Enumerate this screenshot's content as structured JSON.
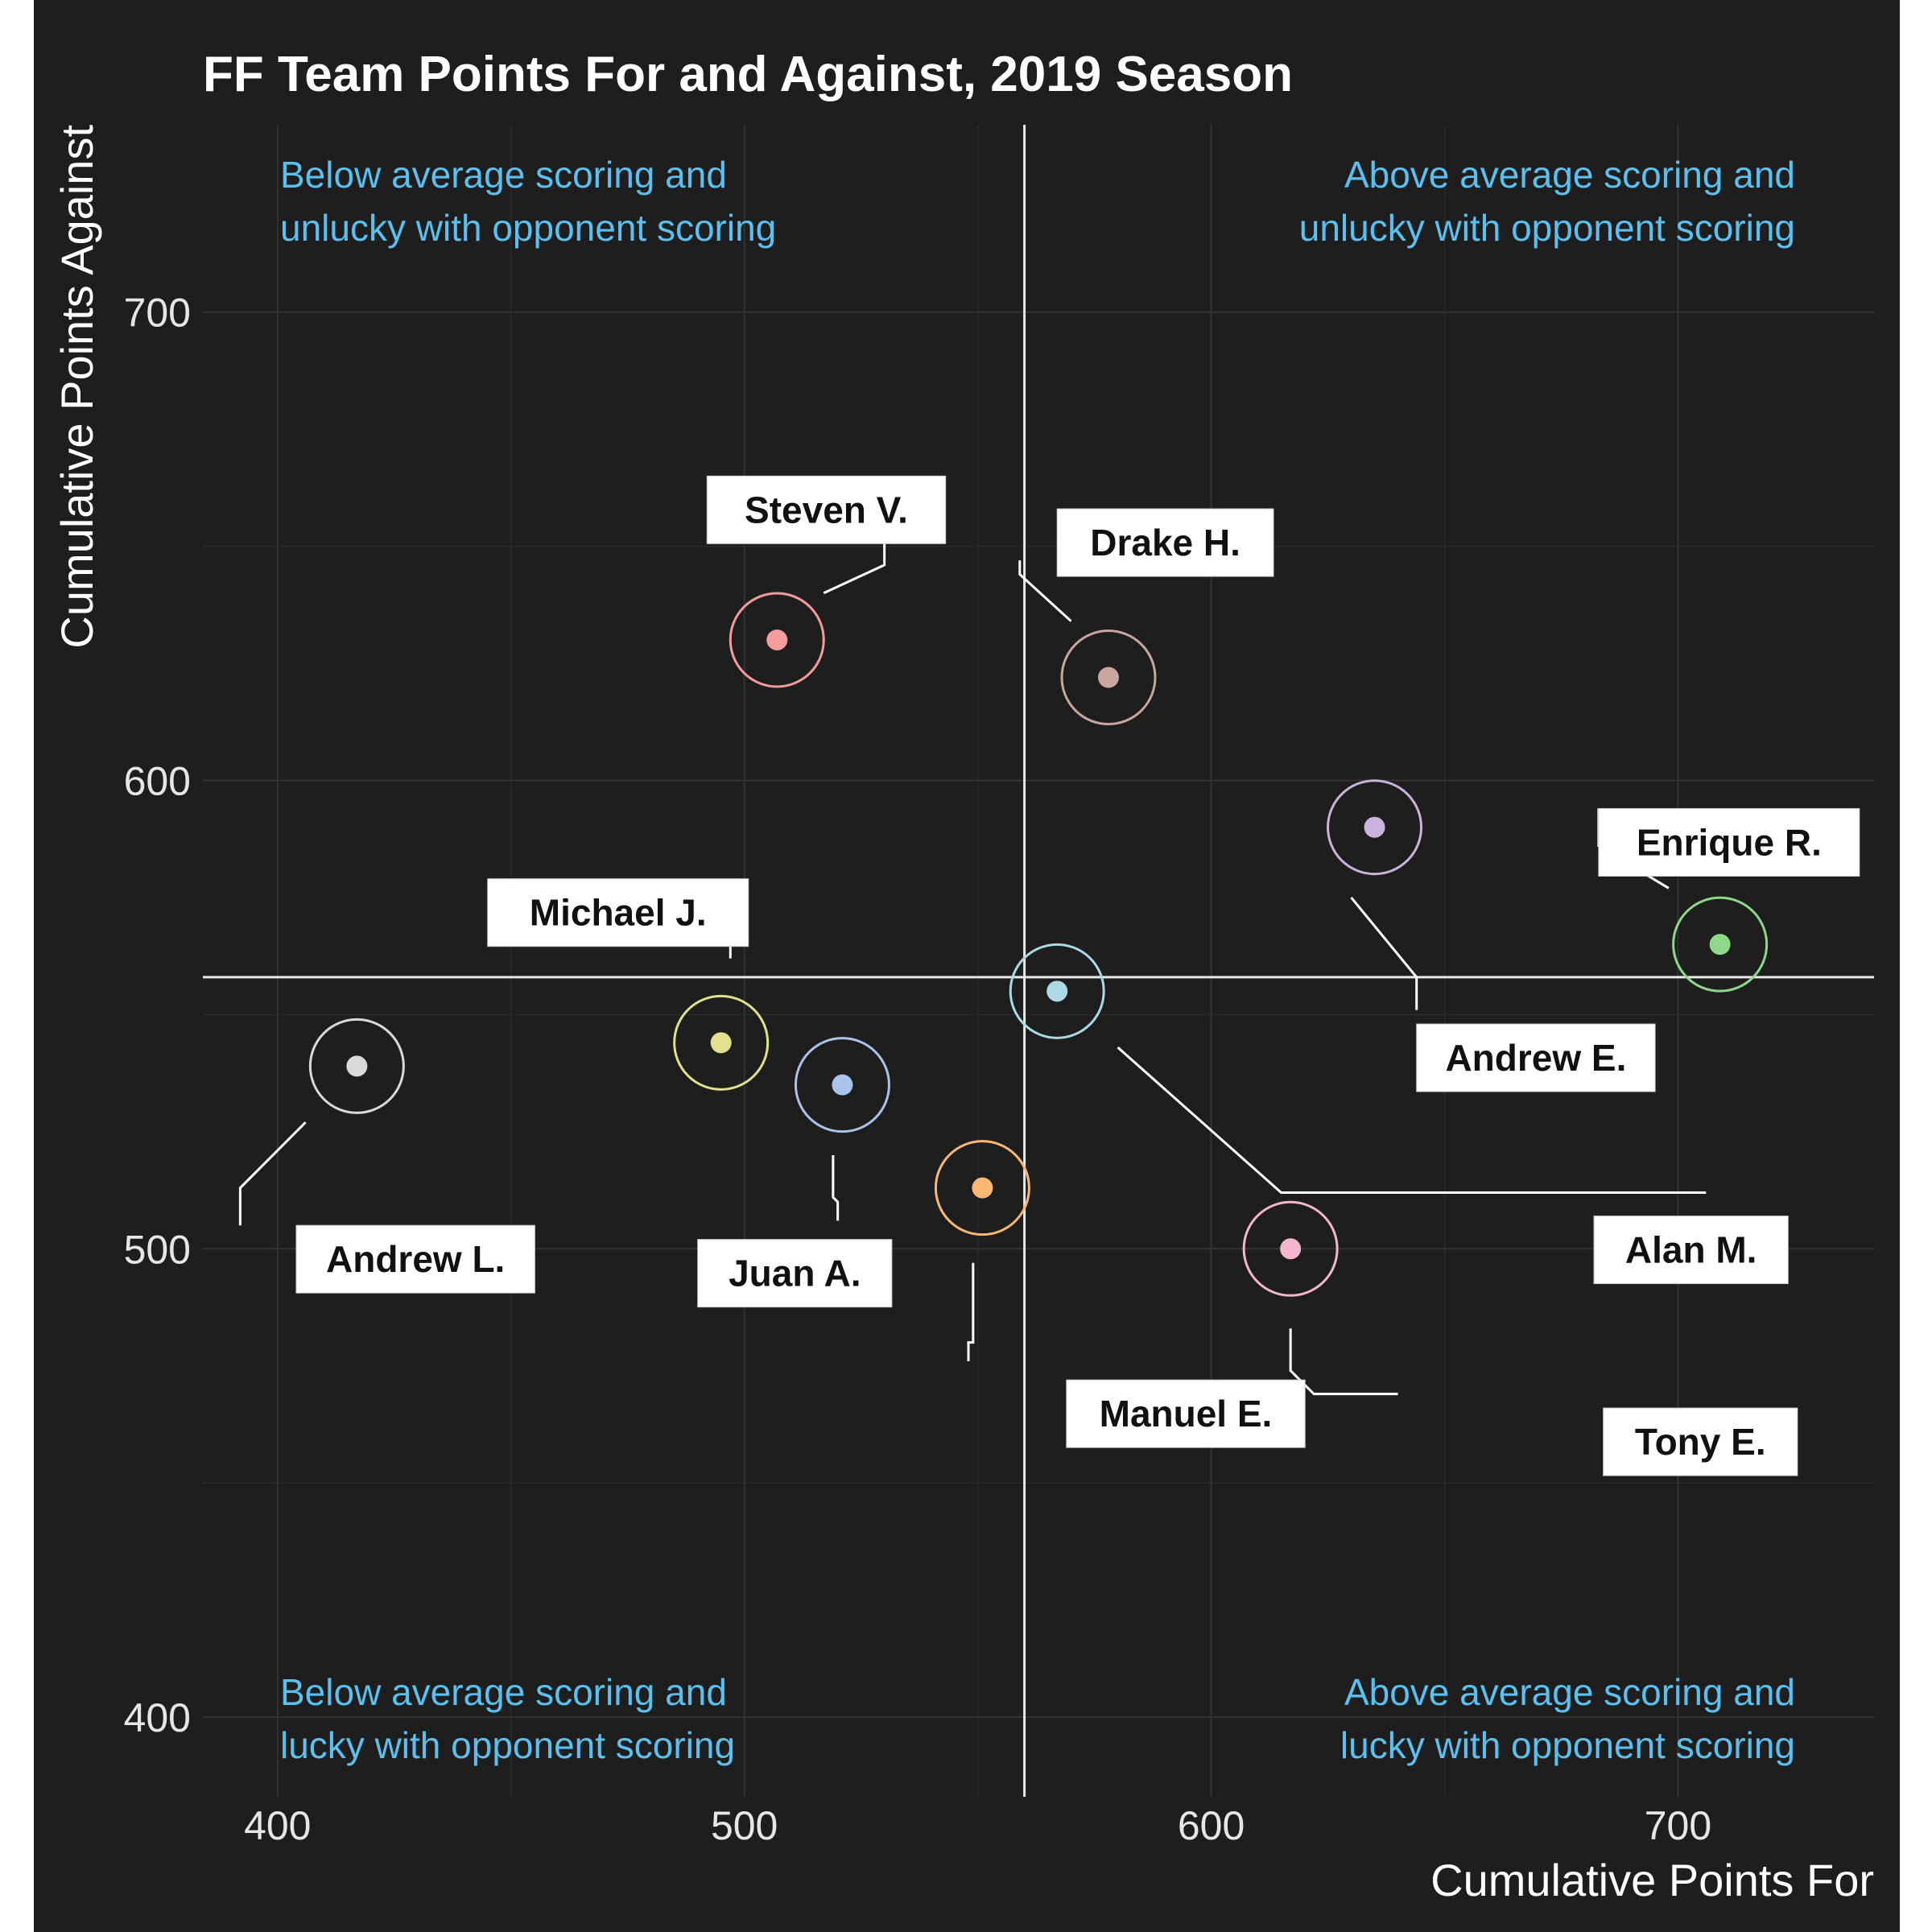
{
  "chart_data": {
    "type": "scatter",
    "title": "FF Team Points For and Against, 2019 Season",
    "xlabel": "Cumulative Points For",
    "ylabel": "Cumulative Points Against",
    "xlim": [
      384,
      742
    ],
    "ylim": [
      383,
      740
    ],
    "xticks": [
      400,
      500,
      600,
      700
    ],
    "yticks": [
      400,
      500,
      600,
      700
    ],
    "grid": true,
    "legend": "none",
    "reference_lines": {
      "x": 560,
      "y": 558
    },
    "annotations": [
      {
        "text": [
          "Below average scoring and",
          "unlucky with opponent scoring"
        ],
        "quadrant": "top-left",
        "color": "#5bc0f0"
      },
      {
        "text": [
          "Above average scoring and",
          "unlucky with opponent scoring"
        ],
        "quadrant": "top-right",
        "color": "#5bc0f0"
      },
      {
        "text": [
          "Below average scoring and",
          "lucky with opponent scoring"
        ],
        "quadrant": "bottom-left",
        "color": "#5bc0f0"
      },
      {
        "text": [
          "Above average scoring and",
          "lucky with opponent scoring"
        ],
        "quadrant": "bottom-right",
        "color": "#5bc0f0"
      }
    ],
    "points": [
      {
        "label": "Steven V.",
        "x": 507,
        "y": 630,
        "color": "#f49b9b",
        "anchor": [
          492,
          665
        ],
        "path": [
          [
            530,
            654
          ],
          [
            530,
            646
          ],
          [
            517,
            640
          ]
        ]
      },
      {
        "label": "Drake H.",
        "x": 578,
        "y": 622,
        "color": "#c9a79e",
        "anchor": [
          567,
          658
        ],
        "path": [
          [
            559,
            647
          ],
          [
            559,
            644
          ],
          [
            570,
            634
          ]
        ]
      },
      {
        "label": "Enrique R.",
        "x": 709,
        "y": 565,
        "color": "#8fd88a",
        "anchor": [
          683,
          594
        ],
        "path": [
          [
            683,
            594
          ],
          [
            683,
            586
          ],
          [
            698,
            577
          ]
        ]
      },
      {
        "label": "Andrew E.",
        "x": 635,
        "y": 590,
        "color": "#c9b3dc",
        "anchor": [
          644,
          548
        ],
        "path": [
          [
            644,
            551
          ],
          [
            644,
            558
          ],
          [
            630,
            575
          ]
        ]
      },
      {
        "label": "Michael J.",
        "x": 495,
        "y": 544,
        "color": "#e0e08e",
        "anchor": [
          445,
          579
        ],
        "path": [
          [
            497,
            577
          ],
          [
            497,
            562
          ]
        ]
      },
      {
        "label": "Andrew L.",
        "x": 417,
        "y": 539,
        "color": "#d9d9d9",
        "anchor": [
          404,
          505
        ],
        "path": [
          [
            392,
            505
          ],
          [
            392,
            513
          ],
          [
            406,
            527
          ]
        ]
      },
      {
        "label": "Juan A.",
        "x": 521,
        "y": 535,
        "color": "#aac3ea",
        "anchor": [
          490,
          502
        ],
        "path": [
          [
            520,
            506
          ],
          [
            520,
            510
          ],
          [
            519,
            511
          ],
          [
            519,
            520
          ]
        ]
      },
      {
        "label": "Manuel E.",
        "x": 551,
        "y": 513,
        "color": "#fbb874",
        "anchor": [
          569,
          472
        ],
        "path": [
          [
            548,
            476
          ],
          [
            548,
            480
          ],
          [
            549,
            480
          ],
          [
            549,
            497
          ]
        ]
      },
      {
        "label": "Alan M.",
        "x": 567,
        "y": 555,
        "color": "#add8e6",
        "anchor": [
          682,
          507
        ],
        "path": [
          [
            706,
            512
          ],
          [
            615,
            512
          ],
          [
            580,
            543
          ]
        ]
      },
      {
        "label": "Tony E.",
        "x": 617,
        "y": 500,
        "color": "#f4b6cf",
        "anchor": [
          684,
          466
        ],
        "path": [
          [
            640,
            469
          ],
          [
            622,
            469
          ],
          [
            617,
            474
          ],
          [
            617,
            483
          ]
        ]
      }
    ]
  }
}
